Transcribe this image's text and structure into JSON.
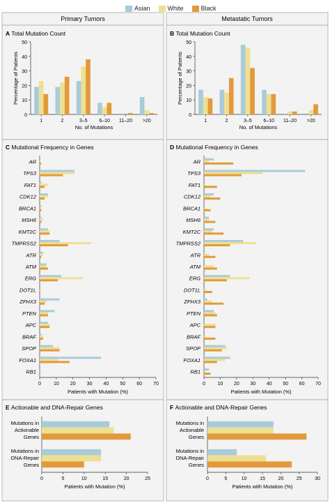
{
  "legend": [
    {
      "name": "Asian",
      "color": "#a9cbd9"
    },
    {
      "name": "White",
      "color": "#eedf92"
    },
    {
      "name": "Black",
      "color": "#e39a3a"
    }
  ],
  "columns": [
    "Primary Tumors",
    "Metastatic Tumors"
  ],
  "chart_data": [
    {
      "id": "A",
      "panel_title": "Total Mutation Count",
      "type": "bar",
      "xlabel": "No. of Mutations",
      "ylabel": "Percentage of Patients",
      "ylim": [
        0,
        50
      ],
      "yticks": [
        0,
        10,
        20,
        30,
        40,
        50
      ],
      "categories": [
        "1",
        "2",
        "3–5",
        "6–10",
        "11–20",
        ">20"
      ],
      "series": [
        {
          "name": "Asian",
          "values": [
            19,
            19,
            23,
            8,
            0,
            12
          ]
        },
        {
          "name": "White",
          "values": [
            23,
            22,
            33,
            5,
            0,
            3
          ]
        },
        {
          "name": "Black",
          "values": [
            14,
            26,
            38,
            8,
            1,
            1
          ]
        }
      ]
    },
    {
      "id": "B",
      "panel_title": "Total Mutation Count",
      "type": "bar",
      "xlabel": "No. of Mutations",
      "ylabel": "Percentage of Patients",
      "ylim": [
        0,
        50
      ],
      "yticks": [
        0,
        10,
        20,
        30,
        40,
        50
      ],
      "categories": [
        "1",
        "2",
        "3–5",
        "6–10",
        "11–20",
        ">20"
      ],
      "series": [
        {
          "name": "Asian",
          "values": [
            17,
            17,
            48,
            17,
            0,
            0
          ]
        },
        {
          "name": "White",
          "values": [
            12,
            15,
            46,
            14,
            2,
            3
          ]
        },
        {
          "name": "Black",
          "values": [
            11,
            25,
            32,
            14,
            2,
            7
          ]
        }
      ]
    },
    {
      "id": "C",
      "panel_title": "Mutational Frequency in Genes",
      "type": "hbar",
      "xlabel": "Patients with Mutation (%)",
      "xlim": [
        0,
        70
      ],
      "xticks": [
        0,
        10,
        20,
        30,
        40,
        50,
        60,
        70
      ],
      "categories": [
        "AR",
        "TPS3",
        "FAT1",
        "CDK12",
        "BRCA1",
        "MSH6",
        "KMT2C",
        "TMPRSS2",
        "ATR",
        "ATM",
        "ERG",
        "DOT1L",
        "ZFHX3",
        "PTEN",
        "APC",
        "BRAF",
        "SPOP",
        "FOXA1",
        "RB1"
      ],
      "series": [
        {
          "name": "Asian",
          "values": [
            0,
            21,
            1,
            5,
            1,
            1,
            5,
            12,
            2,
            4,
            13,
            0,
            12,
            9,
            5,
            1,
            8,
            37,
            0
          ]
        },
        {
          "name": "White",
          "values": [
            0.5,
            21,
            5,
            5,
            1,
            2,
            6,
            31,
            2,
            4,
            26,
            1,
            4,
            5,
            6,
            2,
            12,
            11,
            1
          ]
        },
        {
          "name": "Black",
          "values": [
            1,
            14,
            3,
            3,
            1,
            1,
            6,
            17,
            1,
            5,
            11,
            0,
            3,
            5,
            6,
            2,
            12,
            18,
            0
          ]
        }
      ]
    },
    {
      "id": "D",
      "panel_title": "Mutational Frequency in Genes",
      "type": "hbar",
      "xlabel": "Patients with Mutation (%)",
      "xlim": [
        0,
        70
      ],
      "xticks": [
        0,
        10,
        20,
        30,
        40,
        50,
        60,
        70
      ],
      "categories": [
        "AR",
        "TPS3",
        "FAT1",
        "CDK12",
        "BRCA1",
        "MSH6",
        "KMT2C",
        "TMPRSS2",
        "ATR",
        "ATM",
        "ERG",
        "DOT1L",
        "ZFHX3",
        "PTEN",
        "APC",
        "BRAF",
        "SPOP",
        "FOXA1",
        "RB1"
      ],
      "series": [
        {
          "name": "Asian",
          "values": [
            6,
            62,
            0,
            6,
            0,
            3,
            6,
            24,
            0,
            0,
            16,
            0,
            2,
            6,
            0,
            0,
            13,
            16,
            3
          ]
        },
        {
          "name": "White",
          "values": [
            3,
            36,
            1,
            4,
            1,
            3,
            5,
            32,
            3,
            6,
            28,
            1,
            5,
            7,
            7,
            1,
            14,
            13,
            1
          ]
        },
        {
          "name": "Black",
          "values": [
            18,
            23,
            8,
            10,
            4,
            7,
            12,
            16,
            7,
            8,
            14,
            5,
            12,
            8,
            7,
            7,
            11,
            8,
            4
          ]
        }
      ]
    },
    {
      "id": "E",
      "panel_title": "Actionable and DNA-Repair Genes",
      "type": "hbar",
      "xlabel": "Patients with Mutation (%)",
      "xlim": [
        0,
        25
      ],
      "xticks": [
        0,
        5,
        10,
        15,
        20,
        25
      ],
      "categories": [
        "Mutations in Actionable Genes",
        "Mutations in DNA-Repair Genes"
      ],
      "series": [
        {
          "name": "Asian",
          "values": [
            16,
            14
          ]
        },
        {
          "name": "White",
          "values": [
            17,
            14
          ]
        },
        {
          "name": "Black",
          "values": [
            21,
            10
          ]
        }
      ]
    },
    {
      "id": "F",
      "panel_title": "Actionable and DNA-Repair Genes",
      "type": "hbar",
      "xlabel": "Patients with Mutation (%)",
      "xlim": [
        0,
        30
      ],
      "xticks": [
        0,
        5,
        10,
        15,
        20,
        25,
        30
      ],
      "categories": [
        "Mutations in Actionable Genes",
        "Mutations in DNA-Repair Genes"
      ],
      "series": [
        {
          "name": "Asian",
          "values": [
            18,
            8
          ]
        },
        {
          "name": "White",
          "values": [
            18,
            16
          ]
        },
        {
          "name": "Black",
          "values": [
            27,
            23
          ]
        }
      ]
    }
  ]
}
